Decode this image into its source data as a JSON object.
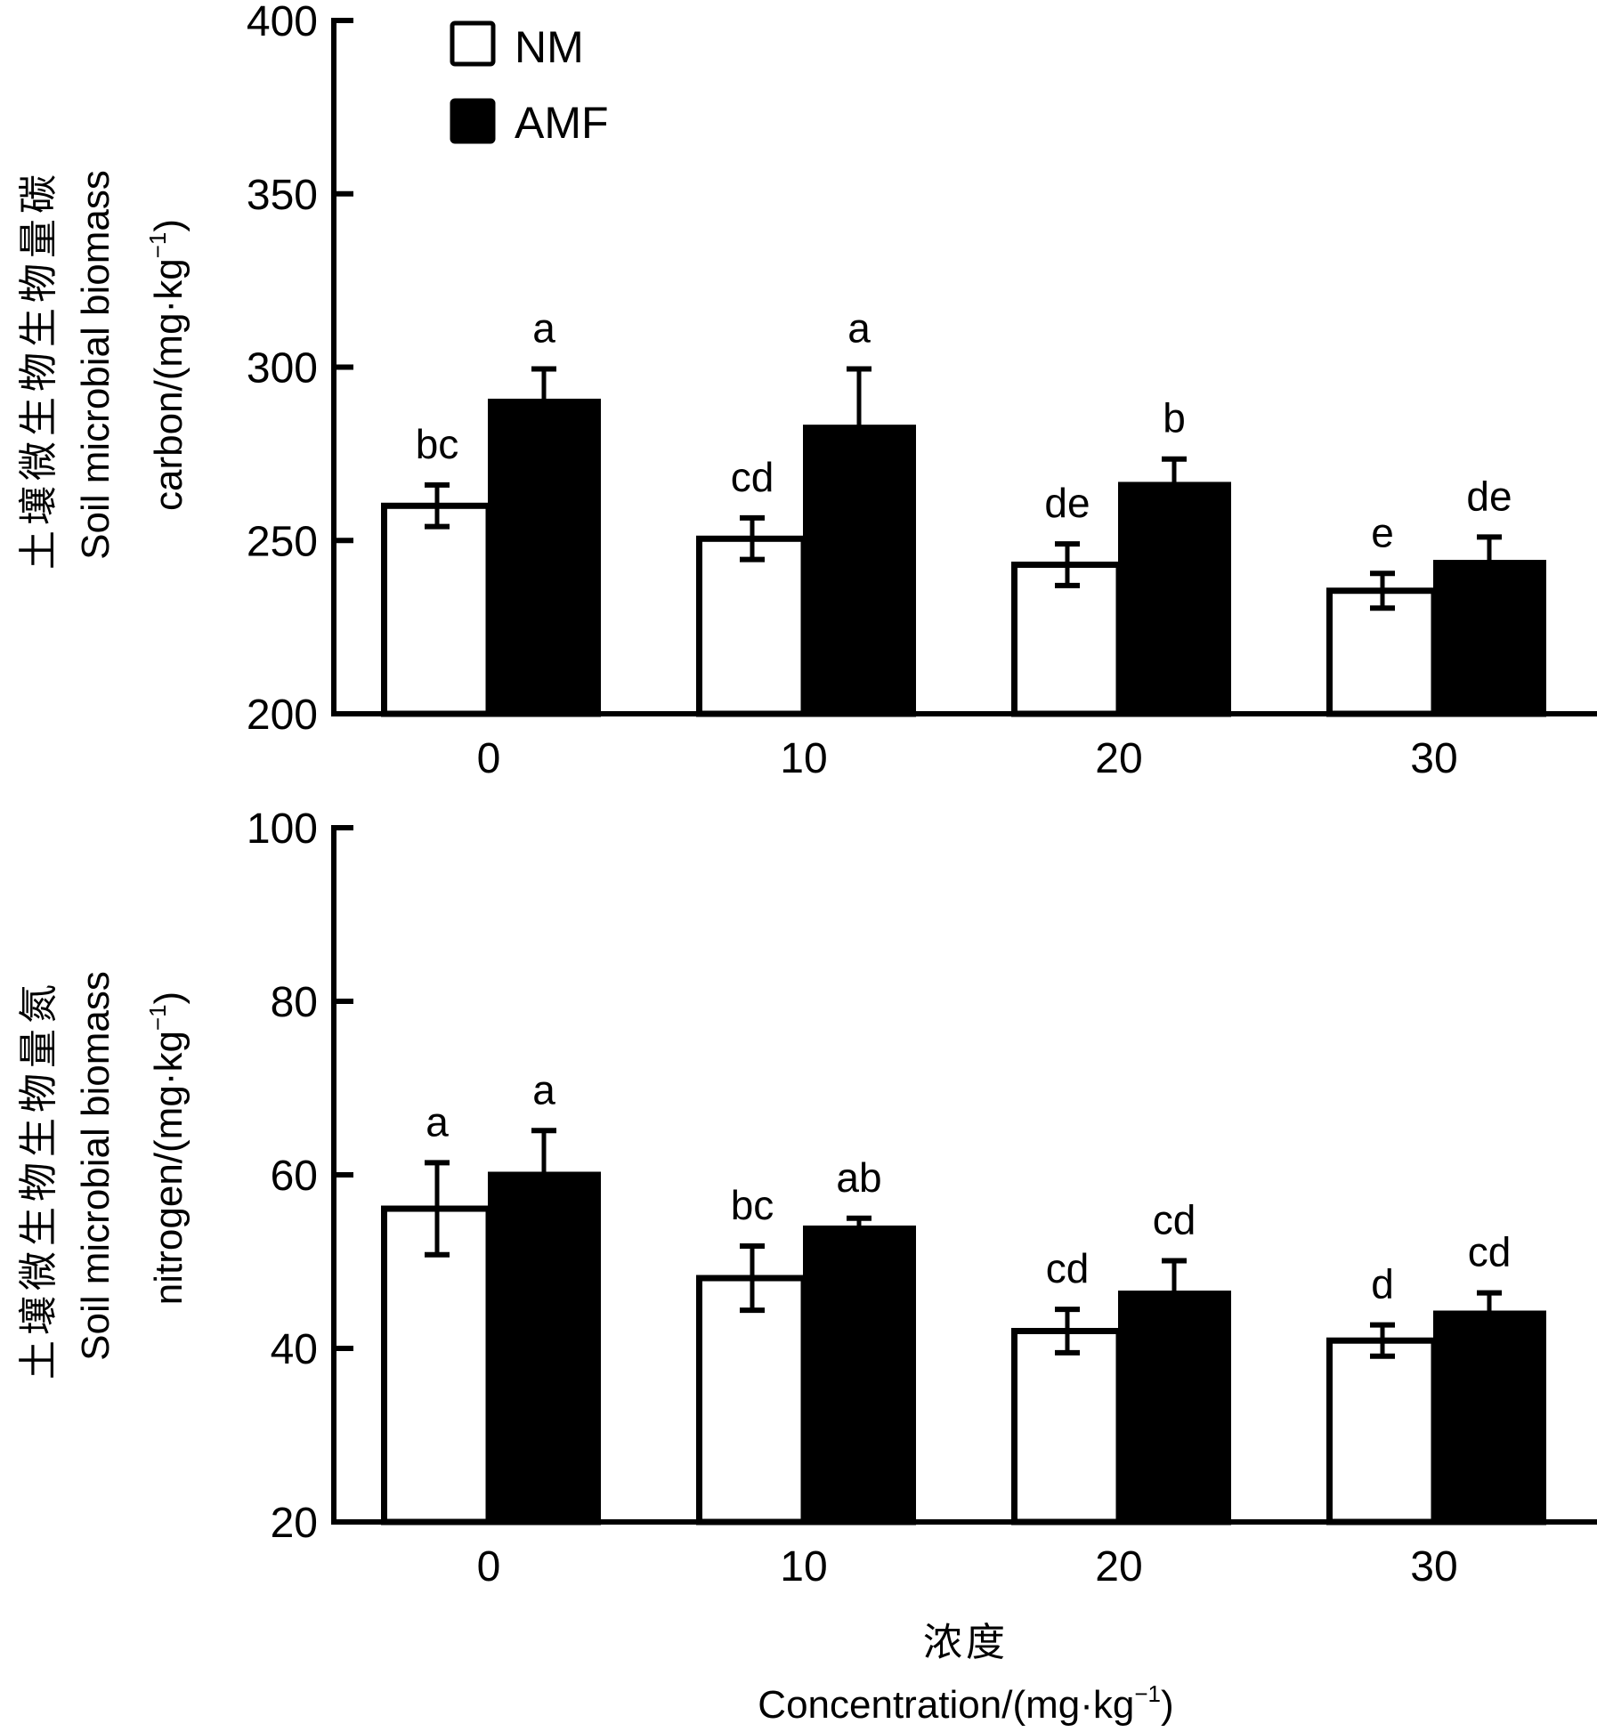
{
  "chart_data": [
    {
      "type": "bar",
      "id": "carbon",
      "ylabel_cn": "土壤微生物生物量碳",
      "ylabel_en_line1": "Soil microbial biomass",
      "ylabel_en_line2": "carbon/(mg·kg",
      "ylabel_sup": "−1",
      "ylabel_close": ")",
      "ylim": [
        200,
        400
      ],
      "yticks": [
        200,
        250,
        300,
        350,
        400
      ],
      "categories": [
        "0",
        "10",
        "20",
        "30"
      ],
      "series": [
        {
          "name": "NM",
          "fill": "#ffffff",
          "values": [
            260,
            250.5,
            243,
            235.5
          ],
          "errors": [
            6,
            6,
            6,
            5
          ],
          "letters": [
            "bc",
            "cd",
            "de",
            "e"
          ]
        },
        {
          "name": "AMF",
          "fill": "#000000",
          "values": [
            290,
            282.5,
            266,
            243.5
          ],
          "errors": [
            9.5,
            17,
            7.5,
            7.5
          ],
          "letters": [
            "a",
            "a",
            "b",
            "de"
          ]
        }
      ]
    },
    {
      "type": "bar",
      "id": "nitrogen",
      "ylabel_cn": "土壤微生物生物量氮",
      "ylabel_en_line1": "Soil microbial biomass",
      "ylabel_en_line2": "nitrogen/(mg·kg",
      "ylabel_sup": "−1",
      "ylabel_close": ")",
      "ylim": [
        20,
        100
      ],
      "yticks": [
        20,
        40,
        60,
        80,
        100
      ],
      "categories": [
        "0",
        "10",
        "20",
        "30"
      ],
      "xlabel_cn": "浓度",
      "xlabel_en": "Concentration/(mg·kg",
      "xlabel_sup": "−1",
      "xlabel_close": ")",
      "series": [
        {
          "name": "NM",
          "fill": "#ffffff",
          "values": [
            56.1,
            48.1,
            42,
            40.9
          ],
          "errors": [
            5.3,
            3.7,
            2.5,
            1.8
          ],
          "letters": [
            "a",
            "bc",
            "cd",
            "d"
          ]
        },
        {
          "name": "AMF",
          "fill": "#000000",
          "values": [
            60,
            53.8,
            46.3,
            44
          ],
          "errors": [
            5.1,
            1.2,
            3.8,
            2.4
          ],
          "letters": [
            "a",
            "ab",
            "cd",
            "cd"
          ]
        }
      ]
    }
  ],
  "legend": {
    "position": "top-left",
    "items": [
      {
        "label": "NM",
        "fill": "#ffffff"
      },
      {
        "label": "AMF",
        "fill": "#000000"
      }
    ]
  }
}
